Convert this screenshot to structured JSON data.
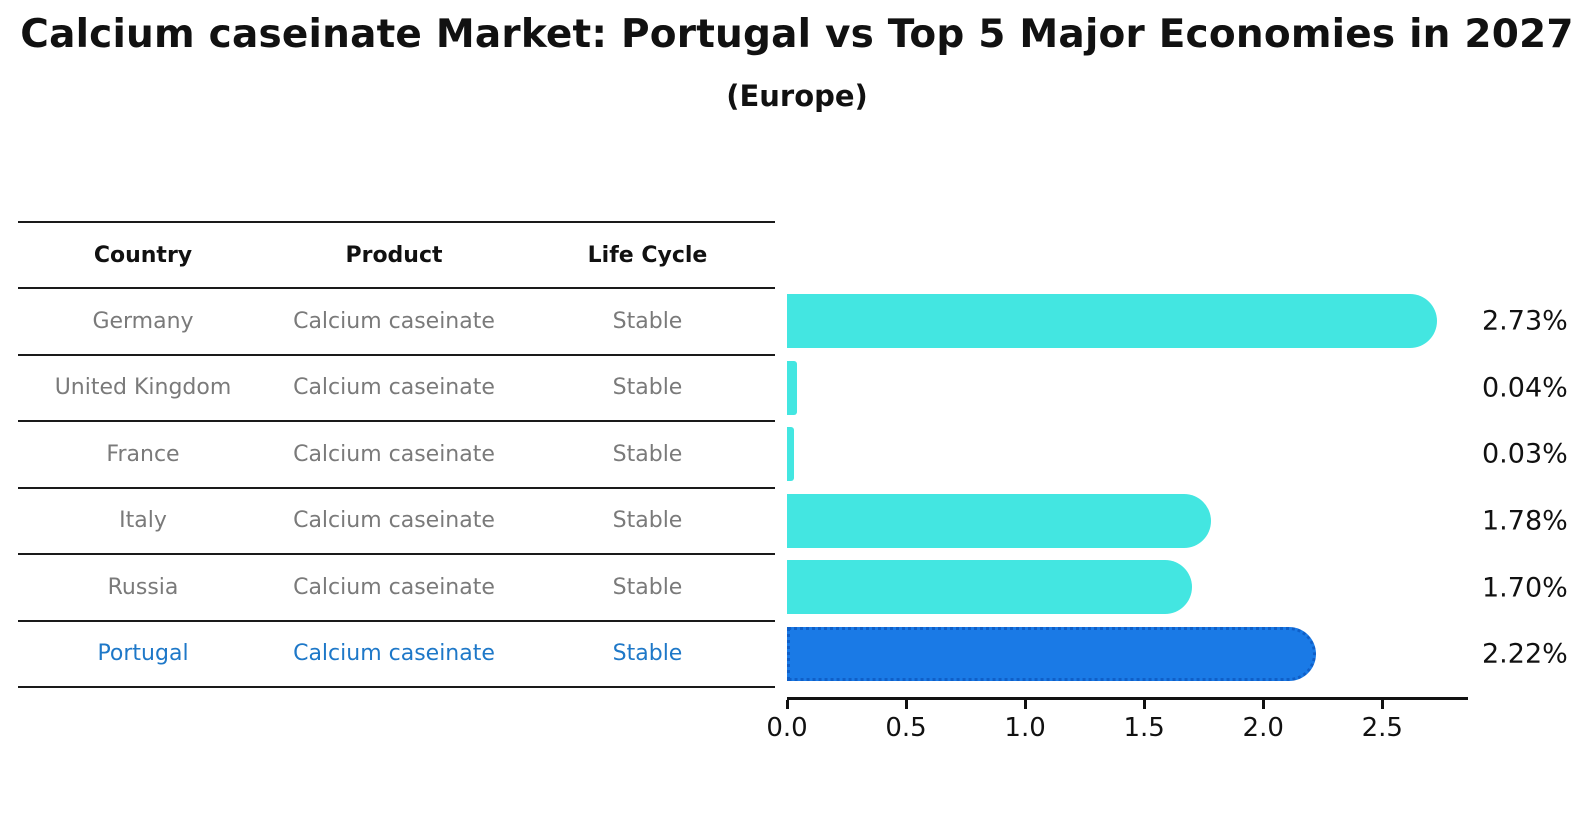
{
  "title": "Calcium caseinate Market: Portugal vs Top 5 Major Economies in 2027",
  "subtitle": "(Europe)",
  "table": {
    "headers": [
      "Country",
      "Product",
      "Life Cycle"
    ],
    "rows": [
      {
        "country": "Germany",
        "product": "Calcium caseinate",
        "life_cycle": "Stable",
        "highlight": false
      },
      {
        "country": "United Kingdom",
        "product": "Calcium caseinate",
        "life_cycle": "Stable",
        "highlight": false
      },
      {
        "country": "France",
        "product": "Calcium caseinate",
        "life_cycle": "Stable",
        "highlight": false
      },
      {
        "country": "Italy",
        "product": "Calcium caseinate",
        "life_cycle": "Stable",
        "highlight": false
      },
      {
        "country": "Russia",
        "product": "Calcium caseinate",
        "life_cycle": "Stable",
        "highlight": false
      },
      {
        "country": "Portugal",
        "product": "Calcium caseinate",
        "life_cycle": "Stable",
        "highlight": true
      }
    ]
  },
  "chart_data": {
    "type": "bar",
    "orientation": "horizontal",
    "categories": [
      "Germany",
      "United Kingdom",
      "France",
      "Italy",
      "Russia",
      "Portugal"
    ],
    "values": [
      2.73,
      0.04,
      0.03,
      1.78,
      1.7,
      2.22
    ],
    "labels": [
      "2.73%",
      "0.04%",
      "0.03%",
      "1.78%",
      "1.70%",
      "2.22%"
    ],
    "x_ticks": [
      "0.0",
      "0.5",
      "1.0",
      "1.5",
      "2.0",
      "2.5"
    ],
    "xlim": [
      0,
      2.86
    ],
    "highlight_index": 5,
    "grid": false,
    "legend": "none",
    "title": "Calcium caseinate Market: Portugal vs Top 5 Major Economies in 2027 (Europe)"
  },
  "colors": {
    "bar_cyan": "#43e6e1",
    "bar_blue": "#1a7ae6",
    "bar_blue_edge": "#0f5fc8",
    "highlight_text": "#1e78c8",
    "table_text": "#7a7a7a",
    "ink": "#111111"
  }
}
